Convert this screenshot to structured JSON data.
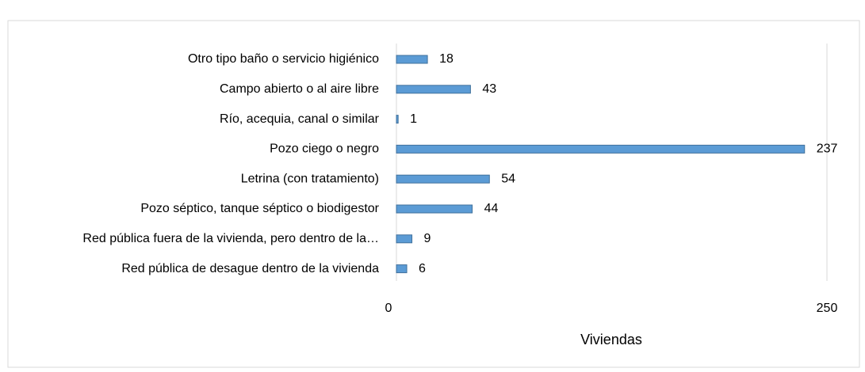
{
  "chart_data": {
    "type": "bar",
    "orientation": "horizontal",
    "categories": [
      "Otro tipo baño o servicio higiénico",
      "Campo abierto o al aire libre",
      "Río, acequia, canal o similar",
      "Pozo ciego o negro",
      "Letrina (con tratamiento)",
      "Pozo séptico, tanque séptico o biodigestor",
      "Red pública fuera de la vivienda, pero dentro de la…",
      "Red pública de desague dentro de la vivienda"
    ],
    "values": [
      18,
      43,
      1,
      237,
      54,
      44,
      9,
      6
    ],
    "color": "#5b9bd5",
    "xlim": [
      0,
      250
    ],
    "xticks": [
      0,
      250
    ],
    "grid": true,
    "x_label": "Viviendas"
  }
}
